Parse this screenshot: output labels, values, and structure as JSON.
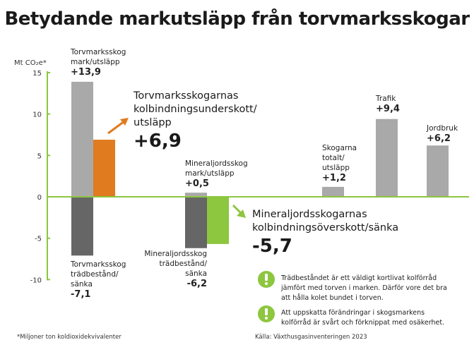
{
  "chart_data": {
    "type": "bar",
    "title": "Betydande markutsläpp från torvmarksskogar",
    "ylabel": "Mt CO₂e*",
    "ylim": [
      -10,
      15
    ],
    "yticks": [
      15,
      10,
      5,
      0,
      -5,
      -10
    ],
    "grid": false,
    "colors": {
      "emission": "#a9a9a9",
      "sink": "#666666",
      "net_emission": "#e07b1f",
      "net_sink": "#8dc63f",
      "axis": "#8dc63f"
    },
    "bars": [
      {
        "key": "torv_mark",
        "label": "Torvmarksskog mark/utsläpp",
        "value": 13.9,
        "display": "+13,9",
        "color": "#a9a9a9"
      },
      {
        "key": "torv_net",
        "label": "Torvmarksskogarnas kolbindningsunderskott/ utsläpp",
        "value": 6.9,
        "display": "+6,9",
        "color": "#e07b1f"
      },
      {
        "key": "torv_trad",
        "label": "Torvmarksskog trädbestånd/ sänka",
        "value": -7.1,
        "display": "-7,1",
        "color": "#666666"
      },
      {
        "key": "min_mark",
        "label": "Mineraljordsskog mark/utsläpp",
        "value": 0.5,
        "display": "+0,5",
        "color": "#a9a9a9"
      },
      {
        "key": "min_trad",
        "label": "Mineraljordsskog trädbestånd/ sänka",
        "value": -6.2,
        "display": "-6,2",
        "color": "#666666"
      },
      {
        "key": "min_net",
        "label": "Mineraljordsskogarnas kolbindningsöverskott/sänka",
        "value": -5.7,
        "display": "-5,7",
        "color": "#8dc63f"
      },
      {
        "key": "skog_tot",
        "label": "Skogarna totalt/ utsläpp",
        "value": 1.2,
        "display": "+1,2",
        "color": "#a9a9a9"
      },
      {
        "key": "trafik",
        "label": "Trafik",
        "value": 9.4,
        "display": "+9,4",
        "color": "#a9a9a9"
      },
      {
        "key": "jordbruk",
        "label": "Jordbruk",
        "value": 6.2,
        "display": "+6,2",
        "color": "#a9a9a9"
      }
    ]
  },
  "labels": {
    "torv_mark": [
      "Torvmarksskog",
      "mark/utsläpp"
    ],
    "torv_net": [
      "Torvmarksskogarnas",
      "kolbindningsunderskott/",
      "utsläpp"
    ],
    "torv_trad": [
      "Torvmarksskog",
      "trädbestånd/",
      "sänka"
    ],
    "min_mark": [
      "Mineraljordsskog",
      "mark/utsläpp"
    ],
    "min_trad": [
      "Mineraljordsskog",
      "trädbestånd/",
      "sänka"
    ],
    "min_net": [
      "Mineraljordsskogarnas",
      "kolbindningsöverskott/sänka"
    ],
    "skog_tot": [
      "Skogarna",
      "totalt/",
      "utsläpp"
    ]
  },
  "notes": [
    {
      "icon": "exclamation-icon",
      "text": [
        "Trädbeståndet är ett väldigt kortlivat kolförråd",
        "jämfört med torven i marken. Därför vore det bra",
        "att hålla kolet bundet i torven."
      ]
    },
    {
      "icon": "exclamation-icon",
      "text": [
        "Att uppskatta förändringar i skogsmarkens",
        "kolförråd är svårt och förknippat med osäkerhet."
      ]
    }
  ],
  "footnote": "*Miljoner ton koldioxidekvivalenter",
  "source": "Källa: Växthusgasinventeringen 2023"
}
